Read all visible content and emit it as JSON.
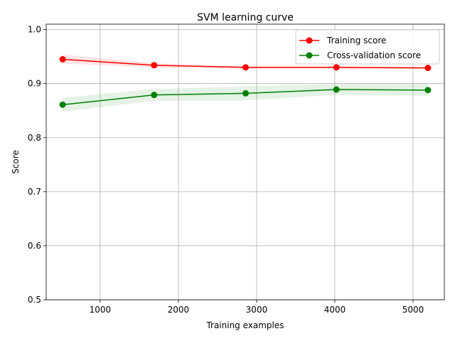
{
  "chart_data": {
    "type": "line",
    "title": "SVM learning curve",
    "xlabel": "Training examples",
    "ylabel": "Score",
    "xlim": [
      310,
      5400
    ],
    "ylim": [
      0.5,
      1.01
    ],
    "xticks": [
      1000,
      2000,
      3000,
      4000,
      5000
    ],
    "yticks": [
      0.5,
      0.6,
      0.7,
      0.8,
      0.9,
      1.0
    ],
    "grid": true,
    "legend_position": "top-right",
    "x": [
      520,
      1690,
      2860,
      4020,
      5190
    ],
    "series": [
      {
        "name": "Training score",
        "color": "#ff0000",
        "values": [
          0.945,
          0.934,
          0.93,
          0.93,
          0.929
        ],
        "band_lower": [
          0.937,
          0.93,
          0.928,
          0.928,
          0.927
        ],
        "band_upper": [
          0.954,
          0.938,
          0.932,
          0.932,
          0.931
        ]
      },
      {
        "name": "Cross-validation score",
        "color": "#008000",
        "values": [
          0.861,
          0.879,
          0.882,
          0.889,
          0.888
        ],
        "band_lower": [
          0.848,
          0.868,
          0.869,
          0.879,
          0.877
        ],
        "band_upper": [
          0.874,
          0.89,
          0.895,
          0.899,
          0.899
        ]
      }
    ]
  }
}
